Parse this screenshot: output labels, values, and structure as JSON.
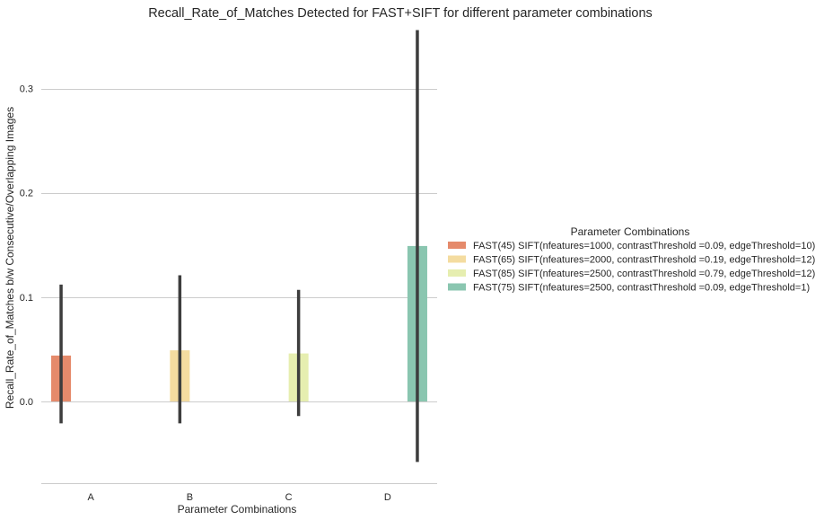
{
  "chart_data": {
    "type": "bar",
    "title": "Recall_Rate_of_Matches Detected for FAST+SIFT  for different parameter combinations",
    "xlabel": "Parameter Combinations",
    "ylabel": "Recall_Rate_of_Matches b/w Consecutive/Overlapping Images",
    "categories": [
      "A",
      "B",
      "C",
      "D"
    ],
    "ylim": [
      -0.08,
      0.36
    ],
    "yticks": [
      0.0,
      0.1,
      0.2,
      0.3
    ],
    "ytick_labels": [
      "0.0",
      "0.1",
      "0.2",
      "0.3"
    ],
    "grid": "horizontal",
    "legend_title": "Parameter Combinations",
    "legend_position": "right",
    "series": [
      {
        "name": "FAST(45) SIFT(nfeatures=1000, contrastThreshold =0.09, edgeThreshold=10)",
        "color": "#e58a6b",
        "values": [
          0.044,
          null,
          null,
          null
        ],
        "ci_low": [
          -0.021,
          null,
          null,
          null
        ],
        "ci_high": [
          0.112,
          null,
          null,
          null
        ]
      },
      {
        "name": "FAST(65) SIFT(nfeatures=2000, contrastThreshold =0.19, edgeThreshold=12)",
        "color": "#f4dca0",
        "values": [
          null,
          0.049,
          null,
          null
        ],
        "ci_low": [
          null,
          -0.021,
          null,
          null
        ],
        "ci_high": [
          null,
          0.121,
          null,
          null
        ]
      },
      {
        "name": "FAST(85) SIFT(nfeatures=2500, contrastThreshold =0.79, edgeThreshold=12)",
        "color": "#e6eeb0",
        "values": [
          null,
          null,
          0.046,
          null
        ],
        "ci_low": [
          null,
          null,
          -0.014,
          null
        ],
        "ci_high": [
          null,
          null,
          0.107,
          null
        ]
      },
      {
        "name": "FAST(75) SIFT(nfeatures=2500, contrastThreshold =0.09, edgeThreshold=1)",
        "color": "#8ac6b0",
        "values": [
          null,
          null,
          null,
          0.149
        ],
        "ci_low": [
          null,
          null,
          null,
          -0.058
        ],
        "ci_high": [
          null,
          null,
          null,
          0.356
        ]
      }
    ],
    "errorbar_color": "#3d3d3d",
    "gridline_color": "#cccccc"
  }
}
